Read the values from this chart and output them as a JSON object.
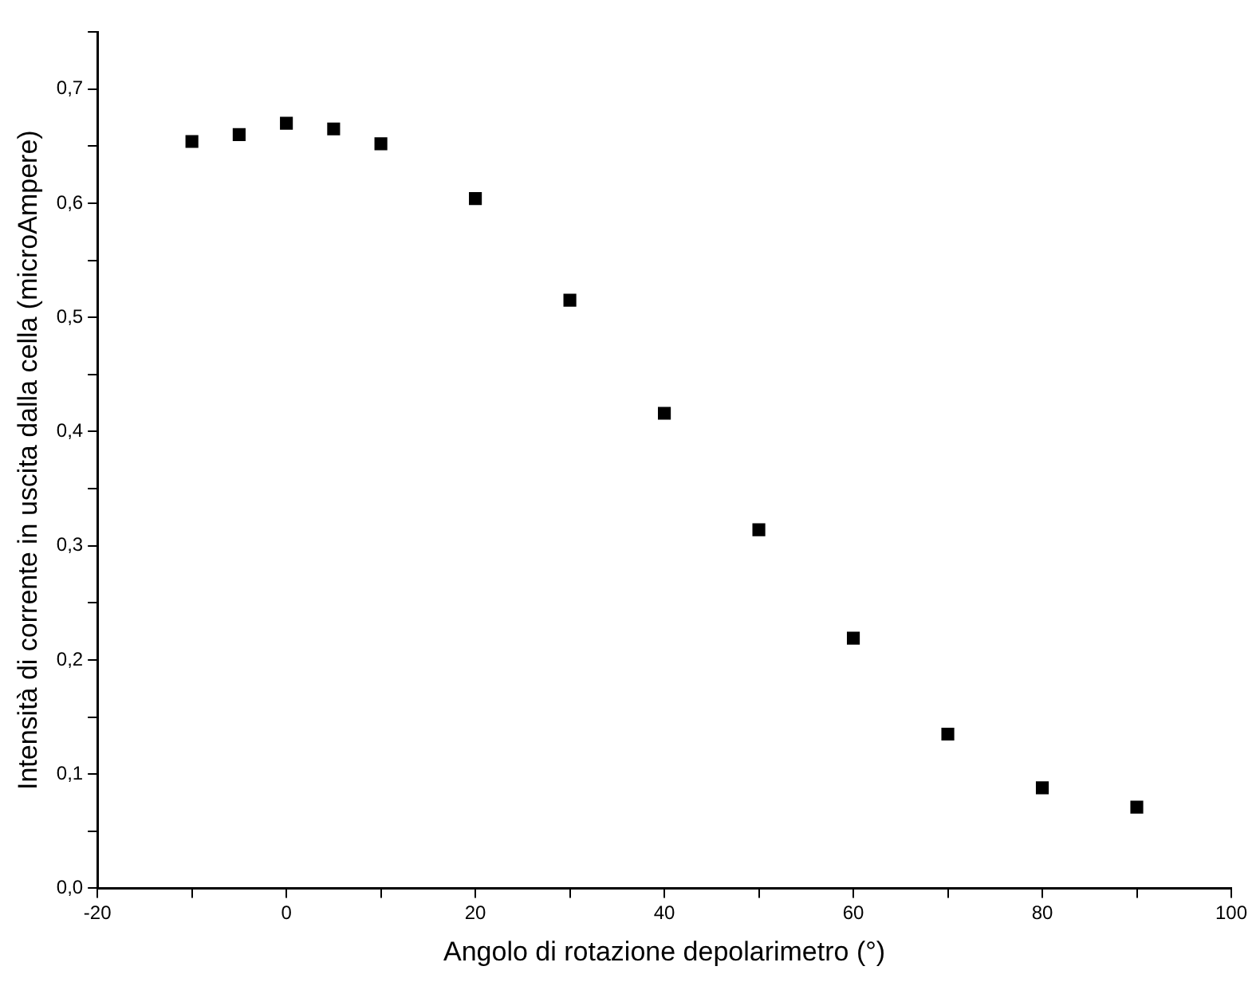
{
  "chart_data": {
    "type": "scatter",
    "xlabel": "Angolo di rotazione depolarimetro (°)",
    "ylabel": "Intensità di corrente in uscita dalla cella (microAmpere)",
    "x": [
      -10,
      -5,
      0,
      5,
      10,
      20,
      30,
      40,
      50,
      60,
      70,
      80,
      90
    ],
    "series": [
      {
        "color": "#000000",
        "values": [
          0.654,
          0.66,
          0.67,
          0.665,
          0.652,
          0.604,
          0.515,
          0.416,
          0.314,
          0.219,
          0.135,
          0.088,
          0.071
        ]
      }
    ],
    "marker": "square",
    "grid": false,
    "legend": false,
    "xlim": [
      -20,
      100
    ],
    "xticks": [
      -20,
      {
        "value": -10,
        "label": null
      },
      0,
      {
        "value": 10,
        "label": null
      },
      20,
      {
        "value": 30,
        "label": null
      },
      40,
      {
        "value": 50,
        "label": null
      },
      60,
      {
        "value": 70,
        "label": null
      },
      80,
      {
        "value": 90,
        "label": null
      },
      100
    ],
    "ylim": [
      0,
      0.75
    ],
    "yticks": [
      {
        "value": 0,
        "label": "0,0"
      },
      {
        "value": 0.05,
        "label": null
      },
      {
        "value": 0.1,
        "label": "0,1"
      },
      {
        "value": 0.15,
        "label": null
      },
      {
        "value": 0.2,
        "label": "0,2"
      },
      {
        "value": 0.25,
        "label": null
      },
      {
        "value": 0.3,
        "label": "0,3"
      },
      {
        "value": 0.35,
        "label": null
      },
      {
        "value": 0.4,
        "label": "0,4"
      },
      {
        "value": 0.45,
        "label": null
      },
      {
        "value": 0.5,
        "label": "0,5"
      },
      {
        "value": 0.55,
        "label": null
      },
      {
        "value": 0.6,
        "label": "0,6"
      },
      {
        "value": 0.65,
        "label": null
      },
      {
        "value": 0.7,
        "label": "0,7"
      },
      {
        "value": 0.75,
        "label": null
      }
    ]
  }
}
